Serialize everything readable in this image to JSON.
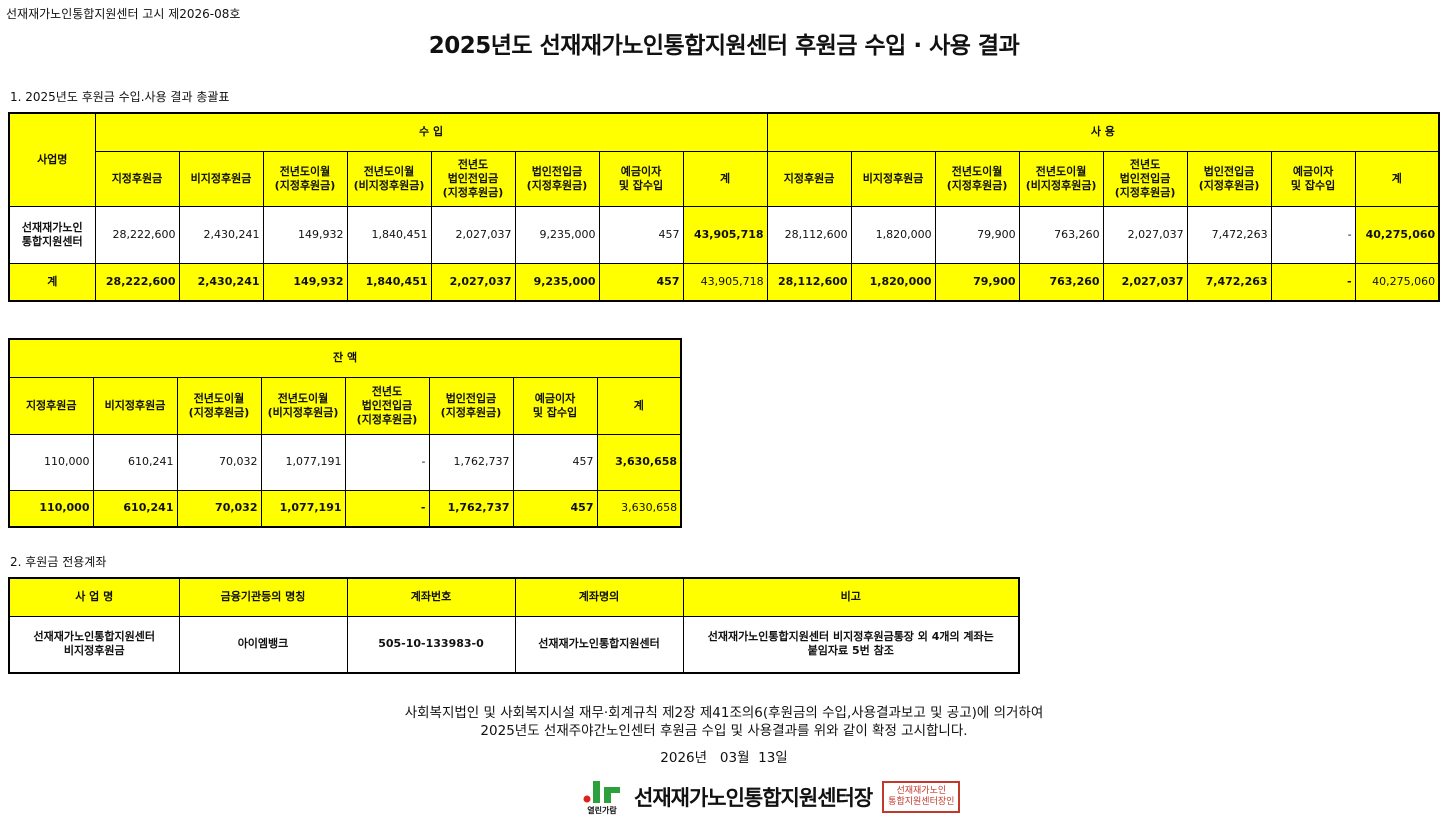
{
  "notice": "선재재가노인통합지원센터 고시 제2026-08호",
  "title": "2025년도 선재재가노인통합지원센터 후원금 수입 · 사용 결과",
  "section1": "1. 2025년도 후원금 수입.사용 결과 총괄표",
  "section2": "2. 후원금 전용계좌",
  "colors": {
    "header": "#ffff00",
    "border": "#000000"
  },
  "summary_table": {
    "business_header": "사업명",
    "income_header": "수 입",
    "usage_header": "사 용",
    "columns": [
      "지정후원금",
      "비지정후원금",
      "전년도이월\n(지정후원금)",
      "전년도이월\n(비지정후원금)",
      "전년도\n법인전입금\n(지정후원금)",
      "법인전입금\n(지정후원금)",
      "예금이자\n및 잡수입",
      "계"
    ],
    "rows": [
      {
        "name": "선재재가노인\n통합지원센터",
        "income": [
          "28,222,600",
          "2,430,241",
          "149,932",
          "1,840,451",
          "2,027,037",
          "9,235,000",
          "457",
          "43,905,718"
        ],
        "usage": [
          "28,112,600",
          "1,820,000",
          "79,900",
          "763,260",
          "2,027,037",
          "7,472,263",
          "-",
          "40,275,060"
        ]
      },
      {
        "name": "계",
        "income": [
          "28,222,600",
          "2,430,241",
          "149,932",
          "1,840,451",
          "2,027,037",
          "9,235,000",
          "457",
          "43,905,718"
        ],
        "usage": [
          "28,112,600",
          "1,820,000",
          "79,900",
          "763,260",
          "2,027,037",
          "7,472,263",
          "-",
          "40,275,060"
        ]
      }
    ]
  },
  "balance_table": {
    "header": "잔 액",
    "columns": [
      "지정후원금",
      "비지정후원금",
      "전년도이월\n(지정후원금)",
      "전년도이월\n(비지정후원금)",
      "전년도\n법인전입금\n(지정후원금)",
      "법인전입금\n(지정후원금)",
      "예금이자\n및 잡수입",
      "계"
    ],
    "rows": [
      [
        "110,000",
        "610,241",
        "70,032",
        "1,077,191",
        "-",
        "1,762,737",
        "457",
        "3,630,658"
      ],
      [
        "110,000",
        "610,241",
        "70,032",
        "1,077,191",
        "-",
        "1,762,737",
        "457",
        "3,630,658"
      ]
    ]
  },
  "account_table": {
    "columns": [
      "사 업 명",
      "금융기관등의 명칭",
      "계좌번호",
      "계좌명의",
      "비고"
    ],
    "rows": [
      [
        "선재재가노인통합지원센터\n비지정후원금",
        "아이엠뱅크",
        "505-10-133983-0",
        "선재재가노인통합지원센터",
        "선재재가노인통합지원센터 비지정후원금통장 외 4개의 계좌는\n붙임자료 5번 참조"
      ]
    ]
  },
  "footer": {
    "line1": "사회복지법인 및 사회복지시설 재무·회계규칙 제2장 제41조의6(후원금의 수입,사용결과보고 및 공고)에 의거하여",
    "line2": "2025년도 선재주야간노인센터 후원금 수입 및 사용결과를 위와 같이 확정 고시합니다.",
    "date": "2026년   03월  13일",
    "logo_text": "열린가람",
    "signatory": "선재재가노인통합지원센터장",
    "seal_text": "선재재가노인통합지원센터장인"
  }
}
